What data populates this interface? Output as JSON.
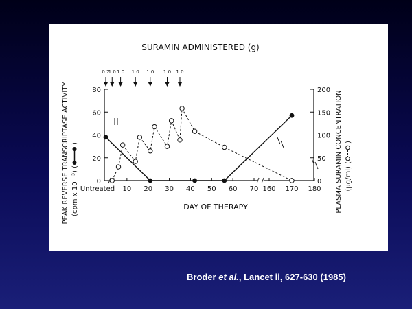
{
  "colors": {
    "background": "#0a0a55",
    "panel": "#ffffff",
    "ink": "#111111",
    "citation": "#ffffff"
  },
  "citation": {
    "author": "Broder",
    "et_al": "et al.",
    "reference": ", Lancet ii, 627-630 (1985)"
  },
  "chart_data": {
    "type": "line",
    "title": "SURAMIN ADMINISTERED (g)",
    "xlabel": "DAY OF THERAPY",
    "ylabel_left": "PEAK REVERSE TRANSCRIPTASE ACTIVITY",
    "ylabel_left_units": "(cpm x 10 ⁻³) (",
    "ylabel_left_close": ")",
    "ylabel_right": "PLASMA SURAMIN CONCENTRATION",
    "ylabel_right_units": "(μg/ml) (",
    "ylabel_right_close": ")",
    "x_ticks": [
      "Untreated",
      "10",
      "20",
      "30",
      "40",
      "50",
      "60",
      "70",
      "160",
      "170",
      "180"
    ],
    "y_left_ticks": [
      "0",
      "20",
      "40",
      "60",
      "80"
    ],
    "y_left_range": [
      0,
      80
    ],
    "y_right_ticks": [
      "0",
      "50",
      "100",
      "150",
      "200"
    ],
    "y_right_range": [
      0,
      200
    ],
    "doses": [
      {
        "label": "0.2",
        "day": 0
      },
      {
        "label": "1.0",
        "day": 3
      },
      {
        "label": "1.0",
        "day": 7
      },
      {
        "label": "1.0",
        "day": 14
      },
      {
        "label": "1.0",
        "day": 21
      },
      {
        "label": "1.0",
        "day": 29
      },
      {
        "label": "1.0",
        "day": 35
      }
    ],
    "series": [
      {
        "marker": "filled",
        "axis": "left",
        "points": [
          {
            "x": "Untreated",
            "y": 38
          },
          {
            "x": 21,
            "y": 0
          },
          {
            "x": 42,
            "y": 0
          },
          {
            "x": 56,
            "y": 0
          },
          {
            "x": 170,
            "y": 57
          }
        ]
      },
      {
        "marker": "open",
        "axis": "right",
        "points": [
          {
            "x": 3,
            "y": 0
          },
          {
            "x": 6,
            "y": 30
          },
          {
            "x": 8,
            "y": 78
          },
          {
            "x": 14,
            "y": 42
          },
          {
            "x": 16,
            "y": 95
          },
          {
            "x": 21,
            "y": 65
          },
          {
            "x": 23,
            "y": 118
          },
          {
            "x": 29,
            "y": 75
          },
          {
            "x": 31,
            "y": 131
          },
          {
            "x": 35,
            "y": 89
          },
          {
            "x": 36,
            "y": 158
          },
          {
            "x": 42,
            "y": 108
          },
          {
            "x": 56,
            "y": 73
          },
          {
            "x": 170,
            "y": 0
          }
        ]
      }
    ]
  }
}
